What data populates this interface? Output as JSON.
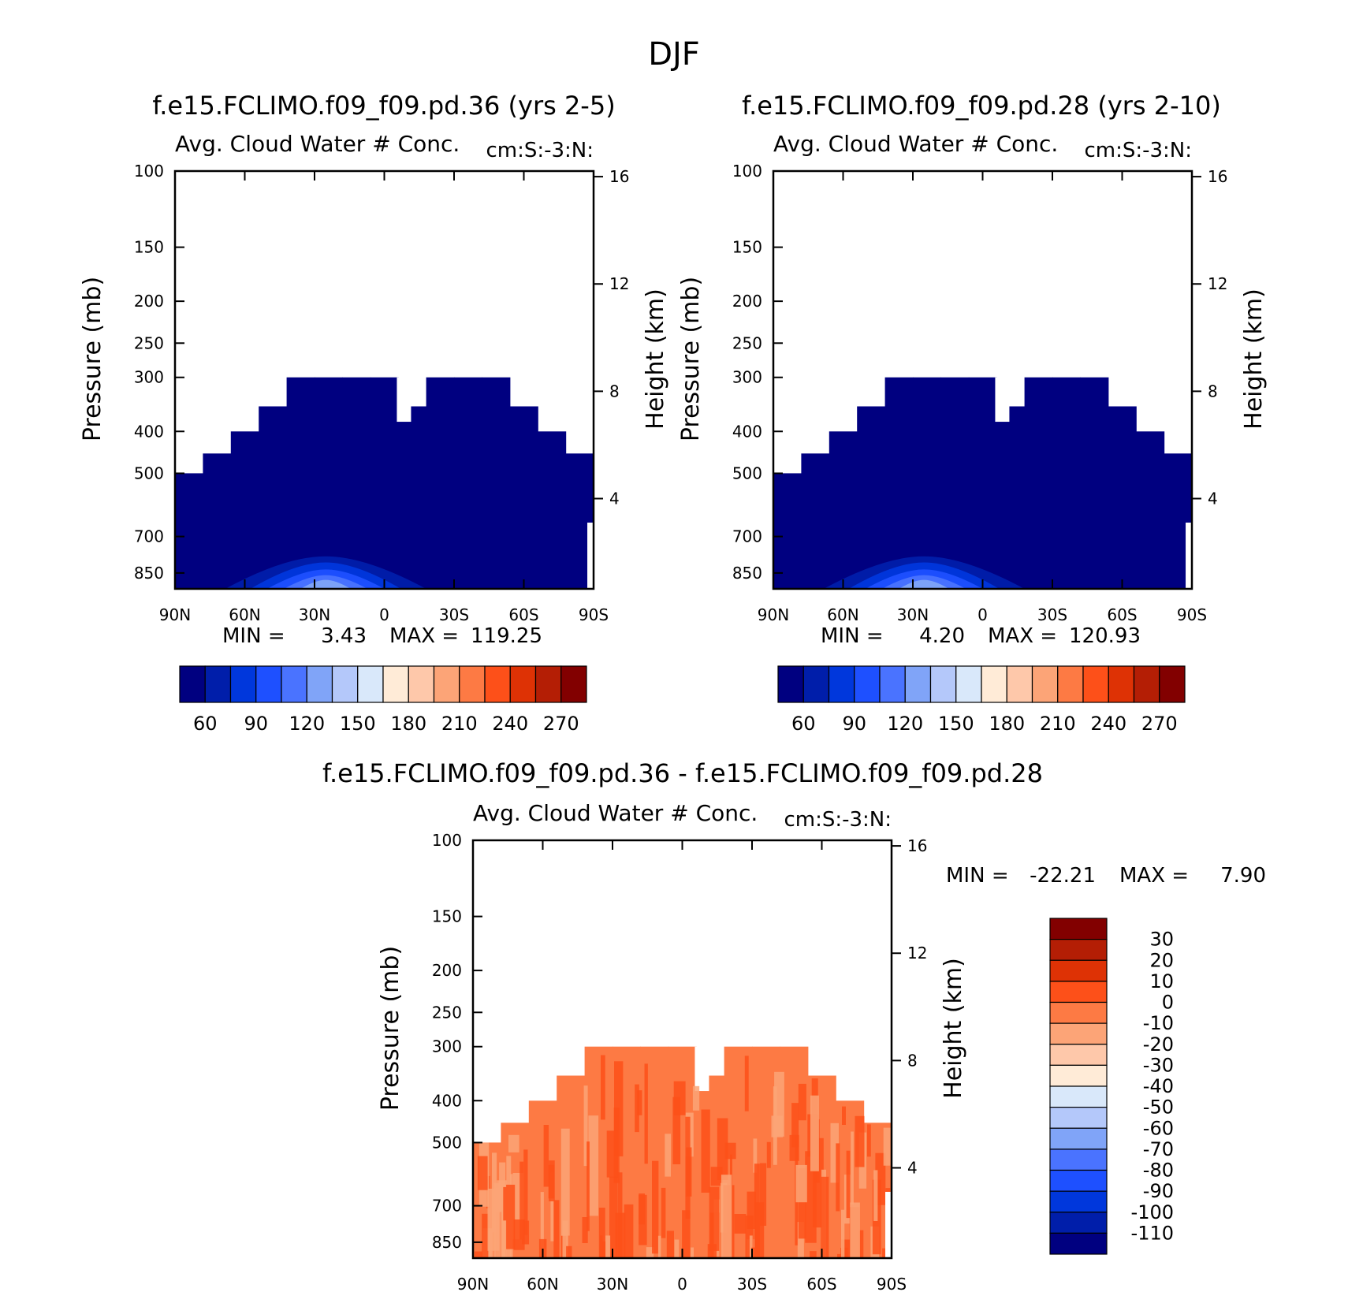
{
  "figure_title": "DJF",
  "chart_data": [
    {
      "type": "heatmap",
      "id": "panel-1",
      "title": "f.e15.FCLIMO.f09_f09.pd.36 (yrs 2-5)",
      "subtitle": "Avg. Cloud Water # Conc.",
      "units": "cm:S:-3:N:",
      "ylabel": "Pressure (mb)",
      "ylabel_right": "Height (km)",
      "x_ticks": [
        "90N",
        "60N",
        "30N",
        "0",
        "30S",
        "60S",
        "90S"
      ],
      "y_ticks": [
        "100",
        "150",
        "200",
        "250",
        "300",
        "400",
        "500",
        "700",
        "850"
      ],
      "y_ticks_right": [
        "16",
        "12",
        "8",
        "4"
      ],
      "stats": {
        "min_label": "MIN =",
        "min": "3.43",
        "max_label": "MAX =",
        "max": "119.25"
      },
      "colorbar_labels": [
        "60",
        "90",
        "120",
        "150",
        "180",
        "210",
        "240",
        "270"
      ],
      "colors": [
        "#000080",
        "#001eaa",
        "#0037dc",
        "#1e50ff",
        "#4a73ff",
        "#80a4f8",
        "#b4c8fa",
        "#d9e8fa",
        "#ffebd7",
        "#fec8aa",
        "#fca477",
        "#fd7a44",
        "#fd5019",
        "#de3205",
        "#b41e05",
        "#820000"
      ],
      "top_levels_mb": [
        500,
        450,
        400,
        350,
        300,
        300,
        300,
        300,
        350,
        300,
        300,
        300,
        350,
        400,
        450
      ]
    },
    {
      "type": "heatmap",
      "id": "panel-2",
      "title": "f.e15.FCLIMO.f09_f09.pd.28 (yrs 2-10)",
      "subtitle": "Avg. Cloud Water # Conc.",
      "units": "cm:S:-3:N:",
      "ylabel": "Pressure (mb)",
      "ylabel_right": "Height (km)",
      "x_ticks": [
        "90N",
        "60N",
        "30N",
        "0",
        "30S",
        "60S",
        "90S"
      ],
      "y_ticks": [
        "100",
        "150",
        "200",
        "250",
        "300",
        "400",
        "500",
        "700",
        "850"
      ],
      "y_ticks_right": [
        "16",
        "12",
        "8",
        "4"
      ],
      "stats": {
        "min_label": "MIN =",
        "min": "4.20",
        "max_label": "MAX =",
        "max": "120.93"
      },
      "colorbar_labels": [
        "60",
        "90",
        "120",
        "150",
        "180",
        "210",
        "240",
        "270"
      ],
      "colors": [
        "#000080",
        "#001eaa",
        "#0037dc",
        "#1e50ff",
        "#4a73ff",
        "#80a4f8",
        "#b4c8fa",
        "#d9e8fa",
        "#ffebd7",
        "#fec8aa",
        "#fca477",
        "#fd7a44",
        "#fd5019",
        "#de3205",
        "#b41e05",
        "#820000"
      ],
      "top_levels_mb": [
        500,
        450,
        400,
        350,
        300,
        300,
        300,
        300,
        350,
        300,
        300,
        300,
        350,
        400,
        450
      ]
    },
    {
      "type": "heatmap",
      "id": "panel-diff",
      "title": "f.e15.FCLIMO.f09_f09.pd.36 - f.e15.FCLIMO.f09_f09.pd.28",
      "subtitle": "Avg. Cloud Water # Conc.",
      "units": "cm:S:-3:N:",
      "ylabel": "Pressure (mb)",
      "ylabel_right": "Height (km)",
      "x_ticks": [
        "90N",
        "60N",
        "30N",
        "0",
        "30S",
        "60S",
        "90S"
      ],
      "y_ticks": [
        "100",
        "150",
        "200",
        "250",
        "300",
        "400",
        "500",
        "700",
        "850"
      ],
      "y_ticks_right": [
        "16",
        "12",
        "8",
        "4"
      ],
      "stats": {
        "min_label": "MIN =",
        "min": "-22.21",
        "max_label": "MAX =",
        "max": "7.90"
      },
      "colorbar_labels": [
        "30",
        "20",
        "10",
        "0",
        "-10",
        "-20",
        "-30",
        "-40",
        "-50",
        "-60",
        "-70",
        "-80",
        "-90",
        "-100",
        "-110"
      ],
      "colors": [
        "#820000",
        "#b41e05",
        "#de3205",
        "#fd5019",
        "#fd7a44",
        "#fca477",
        "#fec8aa",
        "#ffebd7",
        "#d9e8fa",
        "#b4c8fa",
        "#80a4f8",
        "#4a73ff",
        "#1e50ff",
        "#0037dc",
        "#001eaa",
        "#000080"
      ],
      "top_levels_mb": [
        500,
        450,
        400,
        350,
        300,
        300,
        300,
        300,
        350,
        300,
        300,
        300,
        350,
        400,
        450
      ]
    }
  ]
}
